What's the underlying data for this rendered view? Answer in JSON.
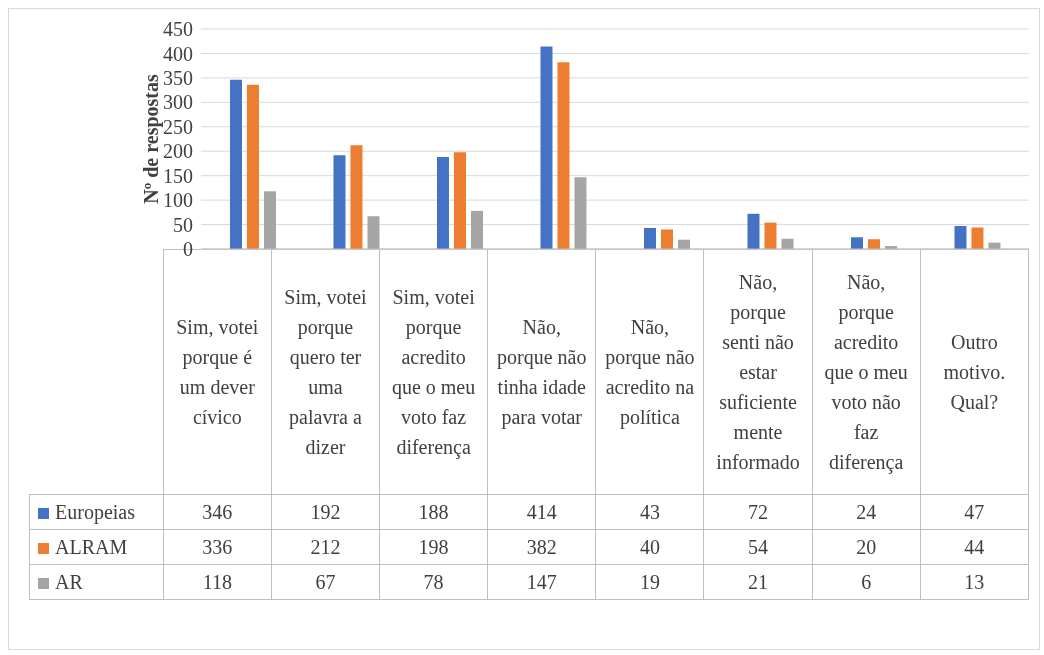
{
  "chart_data": {
    "type": "bar",
    "ylabel": "Nº de respostas",
    "categories": [
      "Sim, votei porque é um dever cívico",
      "Sim, votei porque quero ter uma palavra a dizer",
      "Sim, votei porque acredito que o meu voto faz diferença",
      "Não, porque não tinha idade para votar",
      "Não, porque não acredito na política",
      "Não, porque senti não estar suficientemente informado",
      "Não, porque acredito que o meu voto não faz diferença",
      "Outro motivo. Qual?"
    ],
    "series": [
      {
        "name": "Europeias",
        "color": "#4472c4",
        "values": [
          346,
          192,
          188,
          414,
          43,
          72,
          24,
          47
        ]
      },
      {
        "name": "ALRAM",
        "color": "#ed7d31",
        "values": [
          336,
          212,
          198,
          382,
          40,
          54,
          20,
          44
        ]
      },
      {
        "name": "AR",
        "color": "#a5a5a5",
        "values": [
          118,
          67,
          78,
          147,
          19,
          21,
          6,
          13
        ]
      }
    ],
    "ylim": [
      0,
      450
    ],
    "yticks": [
      0,
      50,
      100,
      150,
      200,
      250,
      300,
      350,
      400,
      450
    ],
    "grid": "y",
    "legend": "bottom",
    "data_labels": true
  }
}
